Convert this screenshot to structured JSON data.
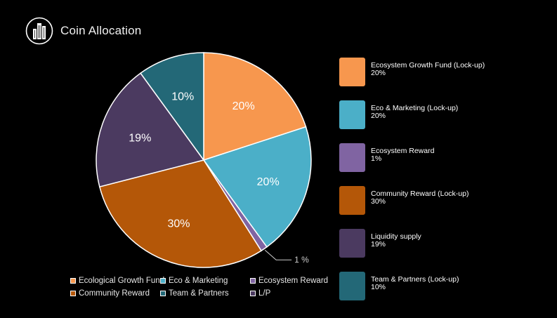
{
  "header": {
    "title": "Coin Allocation",
    "logo_icon": "building-logo-icon"
  },
  "chart_data": {
    "type": "pie",
    "title": "Coin Allocation",
    "slices": [
      {
        "name": "Ecological Growth Fund",
        "value": 20,
        "label": "20%",
        "color": "#F7974E"
      },
      {
        "name": "Eco & Marketing",
        "value": 20,
        "label": "20%",
        "color": "#4BAFC8"
      },
      {
        "name": "Ecosystem Reward",
        "value": 1,
        "label": "1 %",
        "color": "#8064A2"
      },
      {
        "name": "Community Reward",
        "value": 30,
        "label": "30%",
        "color": "#B45708"
      },
      {
        "name": "L/P",
        "value": 19,
        "label": "19%",
        "color": "#4B3A60"
      },
      {
        "name": "Team & Partners",
        "value": 10,
        "label": "10%",
        "color": "#236877"
      }
    ],
    "legend": [
      {
        "label": "Ecological Growth Fund",
        "color": "#F7974E"
      },
      {
        "label": "Eco & Marketing",
        "color": "#4BAFC8"
      },
      {
        "label": "Ecosystem Reward",
        "color": "#8064A2"
      },
      {
        "label": "Community Reward",
        "color": "#B45708"
      },
      {
        "label": "Team & Partners",
        "color": "#236877"
      },
      {
        "label": "L/P",
        "color": "#4B3A60"
      }
    ]
  },
  "side_legend": [
    {
      "name": "Ecosystem Growth Fund (Lock-up)",
      "percent": "20%",
      "color": "#F7974E"
    },
    {
      "name": "Eco & Marketing (Lock-up)",
      "percent": "20%",
      "color": "#4BAFC8"
    },
    {
      "name": "Ecosystem Reward",
      "percent": "1%",
      "color": "#8064A2"
    },
    {
      "name": "Community Reward (Lock-up)",
      "percent": "30%",
      "color": "#B45708"
    },
    {
      "name": "Liquidity supply",
      "percent": "19%",
      "color": "#4B3A60"
    },
    {
      "name": "Team & Partners (Lock-up)",
      "percent": "10%",
      "color": "#236877"
    }
  ]
}
